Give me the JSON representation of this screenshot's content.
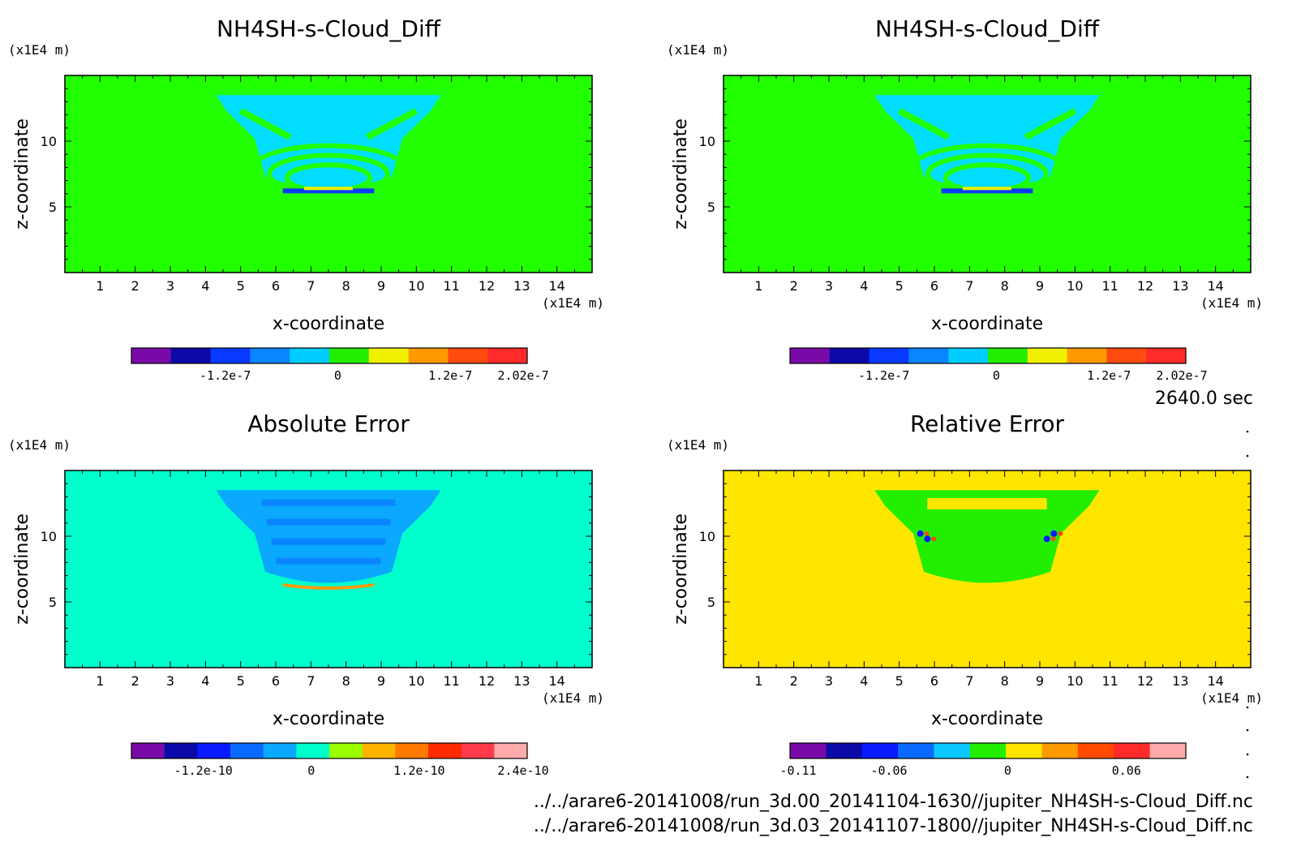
{
  "time_label": "2640.0 sec",
  "file_paths": [
    "../../arare6-20141008/run_3d.00_20141104-1630//jupiter_NH4SH-s-Cloud_Diff.nc",
    "../../arare6-20141008/run_3d.03_20141107-1800//jupiter_NH4SH-s-Cloud_Diff.nc"
  ],
  "chart_data": [
    {
      "id": "panel1",
      "type": "heatmap",
      "title": "NH4SH-s-Cloud_Diff",
      "xlabel": "x-coordinate",
      "ylabel": "z-coordinate",
      "x_unit": "(x1E4 m)",
      "z_unit": "(x1E4 m)",
      "xlim": [
        0,
        15
      ],
      "zlim": [
        0,
        15
      ],
      "x_ticks": [
        "1",
        "2",
        "3",
        "4",
        "5",
        "6",
        "7",
        "8",
        "9",
        "10",
        "11",
        "12",
        "13",
        "14"
      ],
      "z_ticks": [
        "5",
        "10"
      ],
      "background_color": "#22ff00",
      "colorbar": {
        "colors": [
          "#7a0aa8",
          "#0b0aa8",
          "#0a3aff",
          "#0a84ff",
          "#00ccff",
          "#22ee00",
          "#f0f000",
          "#ff9a00",
          "#ff4a10",
          "#ff2a2a"
        ],
        "tick_labels": [
          "-1.2e-7",
          "0",
          "1.2e-7",
          "2.02e-7"
        ],
        "tick_values": [
          -1.2e-07,
          0,
          1.2e-07,
          2.02e-07
        ],
        "range": [
          -2.2e-07,
          2.02e-07
        ]
      },
      "regions": [
        {
          "desc": "cloud plume",
          "color": "#00ddff"
        },
        {
          "desc": "inner rings",
          "color": "#22ff00"
        },
        {
          "desc": "base band",
          "color": "#0a3aff"
        }
      ]
    },
    {
      "id": "panel2",
      "type": "heatmap",
      "title": "NH4SH-s-Cloud_Diff",
      "xlabel": "x-coordinate",
      "ylabel": "z-coordinate",
      "x_unit": "(x1E4 m)",
      "z_unit": "(x1E4 m)",
      "xlim": [
        0,
        15
      ],
      "zlim": [
        0,
        15
      ],
      "x_ticks": [
        "1",
        "2",
        "3",
        "4",
        "5",
        "6",
        "7",
        "8",
        "9",
        "10",
        "11",
        "12",
        "13",
        "14"
      ],
      "z_ticks": [
        "5",
        "10"
      ],
      "background_color": "#22ff00",
      "colorbar": {
        "colors": [
          "#7a0aa8",
          "#0b0aa8",
          "#0a3aff",
          "#0a84ff",
          "#00ccff",
          "#22ee00",
          "#f0f000",
          "#ff9a00",
          "#ff4a10",
          "#ff2a2a"
        ],
        "tick_labels": [
          "-1.2e-7",
          "0",
          "1.2e-7",
          "2.02e-7"
        ],
        "tick_values": [
          -1.2e-07,
          0,
          1.2e-07,
          2.02e-07
        ],
        "range": [
          -2.2e-07,
          2.02e-07
        ]
      },
      "regions": [
        {
          "desc": "cloud plume",
          "color": "#00ddff"
        },
        {
          "desc": "inner rings",
          "color": "#22ff00"
        },
        {
          "desc": "base band",
          "color": "#0a3aff"
        }
      ]
    },
    {
      "id": "panel3",
      "type": "heatmap",
      "title": "Absolute Error",
      "xlabel": "x-coordinate",
      "ylabel": "z-coordinate",
      "x_unit": "(x1E4 m)",
      "z_unit": "(x1E4 m)",
      "xlim": [
        0,
        15
      ],
      "zlim": [
        0,
        15
      ],
      "x_ticks": [
        "1",
        "2",
        "3",
        "4",
        "5",
        "6",
        "7",
        "8",
        "9",
        "10",
        "11",
        "12",
        "13",
        "14"
      ],
      "z_ticks": [
        "5",
        "10"
      ],
      "background_color": "#00ffcc",
      "colorbar": {
        "colors": [
          "#7a0aa8",
          "#0b0aa8",
          "#0a1aff",
          "#0a6aff",
          "#0aa8ff",
          "#00ffcc",
          "#9aff00",
          "#ffb400",
          "#ff7a00",
          "#ff2a00",
          "#ff3a4a",
          "#ffaaaa"
        ],
        "tick_labels": [
          "-1.2e-10",
          "0",
          "1.2e-10",
          "2.4e-10"
        ],
        "tick_values": [
          -1.2e-10,
          0,
          1.2e-10,
          2.4e-10
        ],
        "range": [
          -2e-10,
          2.4e-10
        ]
      },
      "regions": [
        {
          "desc": "cloud plume",
          "color": "#0aa8ff"
        },
        {
          "desc": "base band",
          "color": "#ff9a00"
        }
      ]
    },
    {
      "id": "panel4",
      "type": "heatmap",
      "title": "Relative Error",
      "xlabel": "x-coordinate",
      "ylabel": "z-coordinate",
      "x_unit": "(x1E4 m)",
      "z_unit": "(x1E4 m)",
      "xlim": [
        0,
        15
      ],
      "zlim": [
        0,
        15
      ],
      "x_ticks": [
        "1",
        "2",
        "3",
        "4",
        "5",
        "6",
        "7",
        "8",
        "9",
        "10",
        "11",
        "12",
        "13",
        "14"
      ],
      "z_ticks": [
        "5",
        "10"
      ],
      "background_color": "#ffe600",
      "colorbar": {
        "colors": [
          "#7a0aa8",
          "#0b0aa8",
          "#0a1aff",
          "#0a6aff",
          "#0ac8ff",
          "#22ee00",
          "#ffe600",
          "#ff9a00",
          "#ff4a00",
          "#ff2a2a",
          "#ffaaaa"
        ],
        "tick_labels": [
          "-0.11",
          "-0.06",
          "0",
          "0.06"
        ],
        "tick_values": [
          -0.11,
          -0.06,
          0,
          0.06
        ],
        "range": [
          -0.11,
          0.09
        ]
      },
      "regions": [
        {
          "desc": "cloud plume",
          "color": "#22ee00"
        },
        {
          "desc": "error spots",
          "color": "#0a1aff"
        }
      ]
    }
  ]
}
